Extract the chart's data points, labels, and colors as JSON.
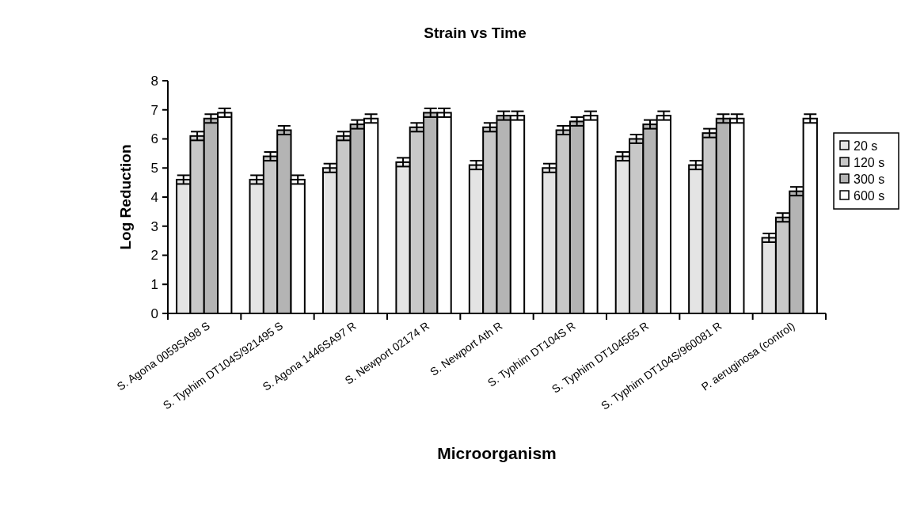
{
  "chart_data": {
    "type": "bar",
    "title": "Strain vs Time",
    "xlabel": "Microorganism",
    "ylabel": "Log Reduction",
    "categories": [
      "S. Agona 0059SA98 S",
      "S. Typhim DT104S/921495 S",
      "S. Agona 1446SA97 R",
      "S. Newport 02174 R",
      "S. Newport Ath R",
      "S. Typhim DT104S R",
      "S. Typhim DT104565 R",
      "S. Typhim DT104S/960081 R",
      "P. aeruginosa (control)"
    ],
    "series": [
      {
        "name": "20 s",
        "color": "#e4e4e4",
        "values": [
          4.6,
          4.6,
          5.0,
          5.2,
          5.1,
          5.0,
          5.4,
          5.1,
          2.6
        ],
        "errors": [
          0.15,
          0.15,
          0.15,
          0.15,
          0.15,
          0.15,
          0.15,
          0.15,
          0.15
        ]
      },
      {
        "name": "120 s",
        "color": "#c8c8c8",
        "values": [
          6.1,
          5.4,
          6.1,
          6.4,
          6.4,
          6.3,
          6.0,
          6.2,
          3.3
        ],
        "errors": [
          0.15,
          0.15,
          0.15,
          0.15,
          0.15,
          0.15,
          0.15,
          0.15,
          0.15
        ]
      },
      {
        "name": "300 s",
        "color": "#b4b4b4",
        "values": [
          6.7,
          6.3,
          6.5,
          6.9,
          6.8,
          6.6,
          6.5,
          6.7,
          4.2
        ],
        "errors": [
          0.15,
          0.15,
          0.15,
          0.15,
          0.15,
          0.15,
          0.15,
          0.15,
          0.15
        ]
      },
      {
        "name": "600 s",
        "color": "#ffffff",
        "values": [
          6.9,
          4.6,
          6.7,
          6.9,
          6.8,
          6.8,
          6.8,
          6.7,
          6.7
        ],
        "errors": [
          0.15,
          0.15,
          0.15,
          0.15,
          0.15,
          0.15,
          0.15,
          0.15,
          0.15
        ]
      }
    ],
    "ylim": [
      0,
      8
    ],
    "yticks": [
      0,
      1,
      2,
      3,
      4,
      5,
      6,
      7,
      8
    ],
    "grid": false,
    "legend": "right"
  }
}
